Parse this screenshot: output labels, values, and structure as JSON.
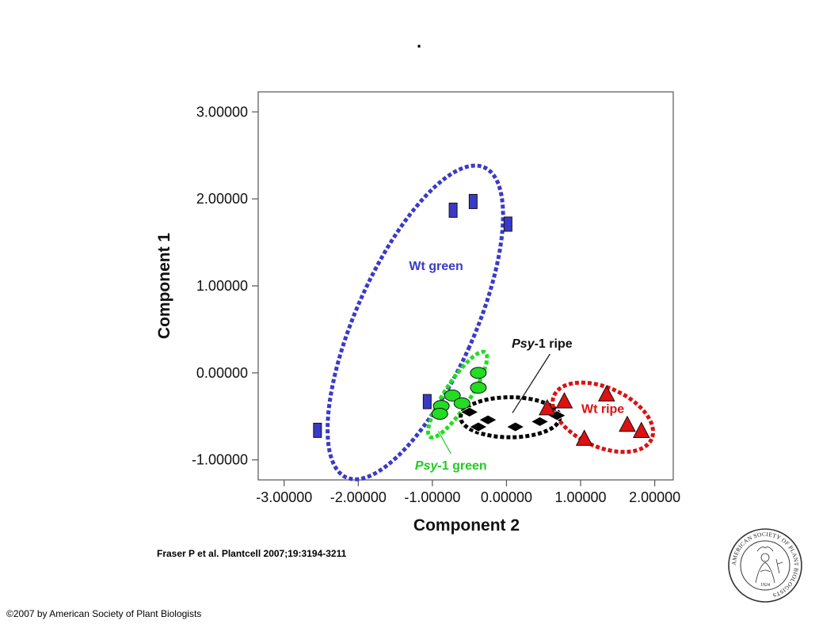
{
  "slide": {
    "title": ".",
    "citation": "Fraser P et al. Plantcell 2007;19:3194-3211",
    "copyright": "©2007 by American Society of Plant Biologists"
  },
  "seal": {
    "ring_text": "AMERICAN SOCIETY OF PLANT BIOLOGISTS",
    "year": "1924"
  },
  "chart_data": {
    "type": "scatter",
    "title": "",
    "xlabel": "Component 2",
    "ylabel": "Component 1",
    "xlim": [
      -3.35,
      2.25
    ],
    "ylim": [
      -1.23,
      3.23
    ],
    "xticks": [
      -3.0,
      -2.0,
      -1.0,
      0.0,
      1.0,
      2.0
    ],
    "yticks": [
      -1.0,
      0.0,
      1.0,
      2.0,
      3.0
    ],
    "xtick_labels": [
      "-3.00000",
      "-2.00000",
      "-1.00000",
      "0.00000",
      "1.00000",
      "2.00000"
    ],
    "ytick_labels": [
      "-1.00000",
      "0.00000",
      "1.00000",
      "2.00000",
      "3.00000"
    ],
    "grid": false,
    "series": [
      {
        "name": "Wt green",
        "marker": "square",
        "color": "#3a3ac8",
        "points": [
          {
            "x": -0.72,
            "y": 1.87
          },
          {
            "x": -0.45,
            "y": 1.97
          },
          {
            "x": 0.02,
            "y": 1.71
          },
          {
            "x": -1.07,
            "y": -0.33
          },
          {
            "x": -2.55,
            "y": -0.66
          }
        ]
      },
      {
        "name": "Psy-1 green",
        "marker": "ellipse",
        "color": "#22dd22",
        "points": [
          {
            "x": -0.38,
            "y": 0.0
          },
          {
            "x": -0.38,
            "y": -0.17
          },
          {
            "x": -0.73,
            "y": -0.26
          },
          {
            "x": -0.88,
            "y": -0.38
          },
          {
            "x": -0.6,
            "y": -0.35
          },
          {
            "x": -0.9,
            "y": -0.47
          }
        ]
      },
      {
        "name": "Psy-1 ripe",
        "marker": "diamond",
        "color": "#000000",
        "points": [
          {
            "x": -0.5,
            "y": -0.45
          },
          {
            "x": -0.25,
            "y": -0.54
          },
          {
            "x": -0.38,
            "y": -0.62
          },
          {
            "x": 0.12,
            "y": -0.62
          },
          {
            "x": 0.45,
            "y": -0.56
          },
          {
            "x": 0.68,
            "y": -0.49
          }
        ]
      },
      {
        "name": "Wt ripe",
        "marker": "triangle",
        "color": "#dd1111",
        "points": [
          {
            "x": 0.55,
            "y": -0.41
          },
          {
            "x": 0.78,
            "y": -0.33
          },
          {
            "x": 1.35,
            "y": -0.25
          },
          {
            "x": 1.05,
            "y": -0.76
          },
          {
            "x": 1.63,
            "y": -0.6
          },
          {
            "x": 1.82,
            "y": -0.67
          }
        ]
      }
    ],
    "group_outlines": [
      {
        "name": "Wt green",
        "color": "#3a3ac8",
        "cx": -1.23,
        "cy": 0.58,
        "rx": 0.8,
        "ry": 1.95,
        "rotate": 24
      },
      {
        "name": "Psy-1 green",
        "color": "#22dd22",
        "cx": -0.66,
        "cy": -0.25,
        "rx": 0.17,
        "ry": 0.58,
        "rotate": 33
      },
      {
        "name": "Psy-1 ripe",
        "color": "#000000",
        "cx": 0.05,
        "cy": -0.51,
        "rx": 0.67,
        "ry": 0.23,
        "rotate": 0
      },
      {
        "name": "Wt ripe",
        "color": "#dd1111",
        "cx": 1.3,
        "cy": -0.51,
        "rx": 0.72,
        "ry": 0.34,
        "rotate": 24
      }
    ],
    "annotations": [
      {
        "text_italic": "Psy",
        "text_rest": "-1 ripe",
        "color": "#111111",
        "x": 0.48,
        "y": 0.29,
        "anchor": "middle",
        "pointer_to": {
          "x": 0.08,
          "y": -0.46
        }
      },
      {
        "text_italic": "Psy",
        "text_rest": "-1 green",
        "color": "#22cc22",
        "x": -0.75,
        "y": -1.11,
        "anchor": "middle",
        "pointer_to": {
          "x": -0.92,
          "y": -0.67
        }
      },
      {
        "text_italic": "",
        "text_rest": "Wt green",
        "color": "#3a3ac8",
        "x": -0.95,
        "y": 1.18,
        "anchor": "middle"
      },
      {
        "text_italic": "",
        "text_rest": "Wt ripe",
        "color": "#dd1111",
        "x": 1.3,
        "y": -0.46,
        "anchor": "middle"
      }
    ]
  }
}
